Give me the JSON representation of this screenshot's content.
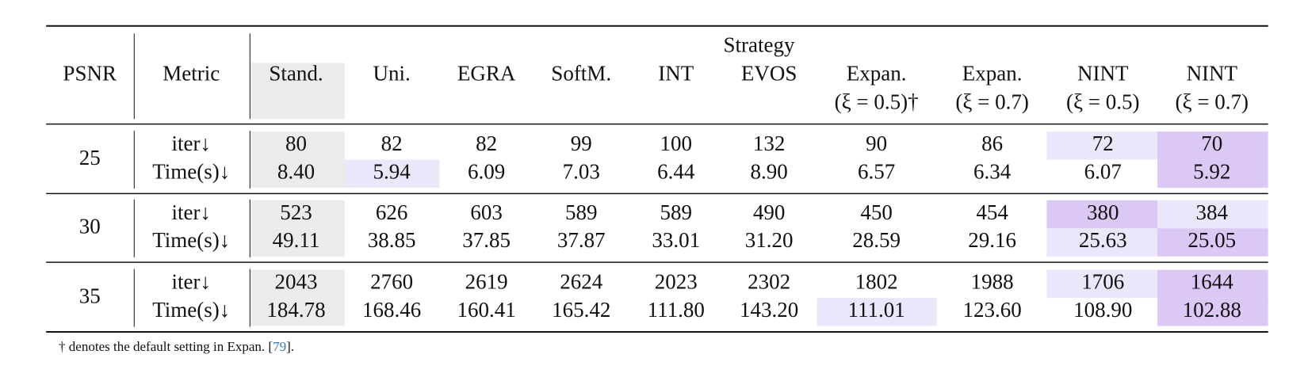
{
  "table": {
    "group": "Strategy",
    "columns": [
      [
        "PSNR"
      ],
      [
        "Metric"
      ],
      [
        "Stand."
      ],
      [
        "Uni."
      ],
      [
        "EGRA"
      ],
      [
        "SoftM."
      ],
      [
        "INT"
      ],
      [
        "EVOS"
      ],
      [
        "Expan.",
        "(ξ = 0.5)†"
      ],
      [
        "Expan.",
        "(ξ = 0.7)"
      ],
      [
        "NINT",
        "(ξ = 0.5)"
      ],
      [
        "NINT",
        "(ξ = 0.7)"
      ]
    ],
    "rows": [
      {
        "psnr": "25",
        "metrics": [
          {
            "name": "iter↓",
            "values": [
              "80",
              "82",
              "82",
              "99",
              "100",
              "132",
              "90",
              "86",
              "72",
              "70"
            ]
          },
          {
            "name": "Time(s)↓",
            "values": [
              "8.40",
              "5.94",
              "6.09",
              "7.03",
              "6.44",
              "8.90",
              "6.57",
              "6.34",
              "6.07",
              "5.92"
            ]
          }
        ]
      },
      {
        "psnr": "30",
        "metrics": [
          {
            "name": "iter↓",
            "values": [
              "523",
              "626",
              "603",
              "589",
              "589",
              "490",
              "450",
              "454",
              "380",
              "384"
            ]
          },
          {
            "name": "Time(s)↓",
            "values": [
              "49.11",
              "38.85",
              "37.85",
              "37.87",
              "33.01",
              "31.20",
              "28.59",
              "29.16",
              "25.63",
              "25.05"
            ]
          }
        ]
      },
      {
        "psnr": "35",
        "metrics": [
          {
            "name": "iter↓",
            "values": [
              "2043",
              "2760",
              "2619",
              "2624",
              "2023",
              "2302",
              "1802",
              "1988",
              "1706",
              "1644"
            ]
          },
          {
            "name": "Time(s)↓",
            "values": [
              "184.78",
              "168.46",
              "160.41",
              "165.42",
              "111.80",
              "143.20",
              "111.01",
              "123.60",
              "108.90",
              "102.88"
            ]
          }
        ]
      }
    ],
    "footnote": {
      "text": "† denotes the default setting in Expan. [",
      "ref": "79",
      "end": "]."
    }
  }
}
